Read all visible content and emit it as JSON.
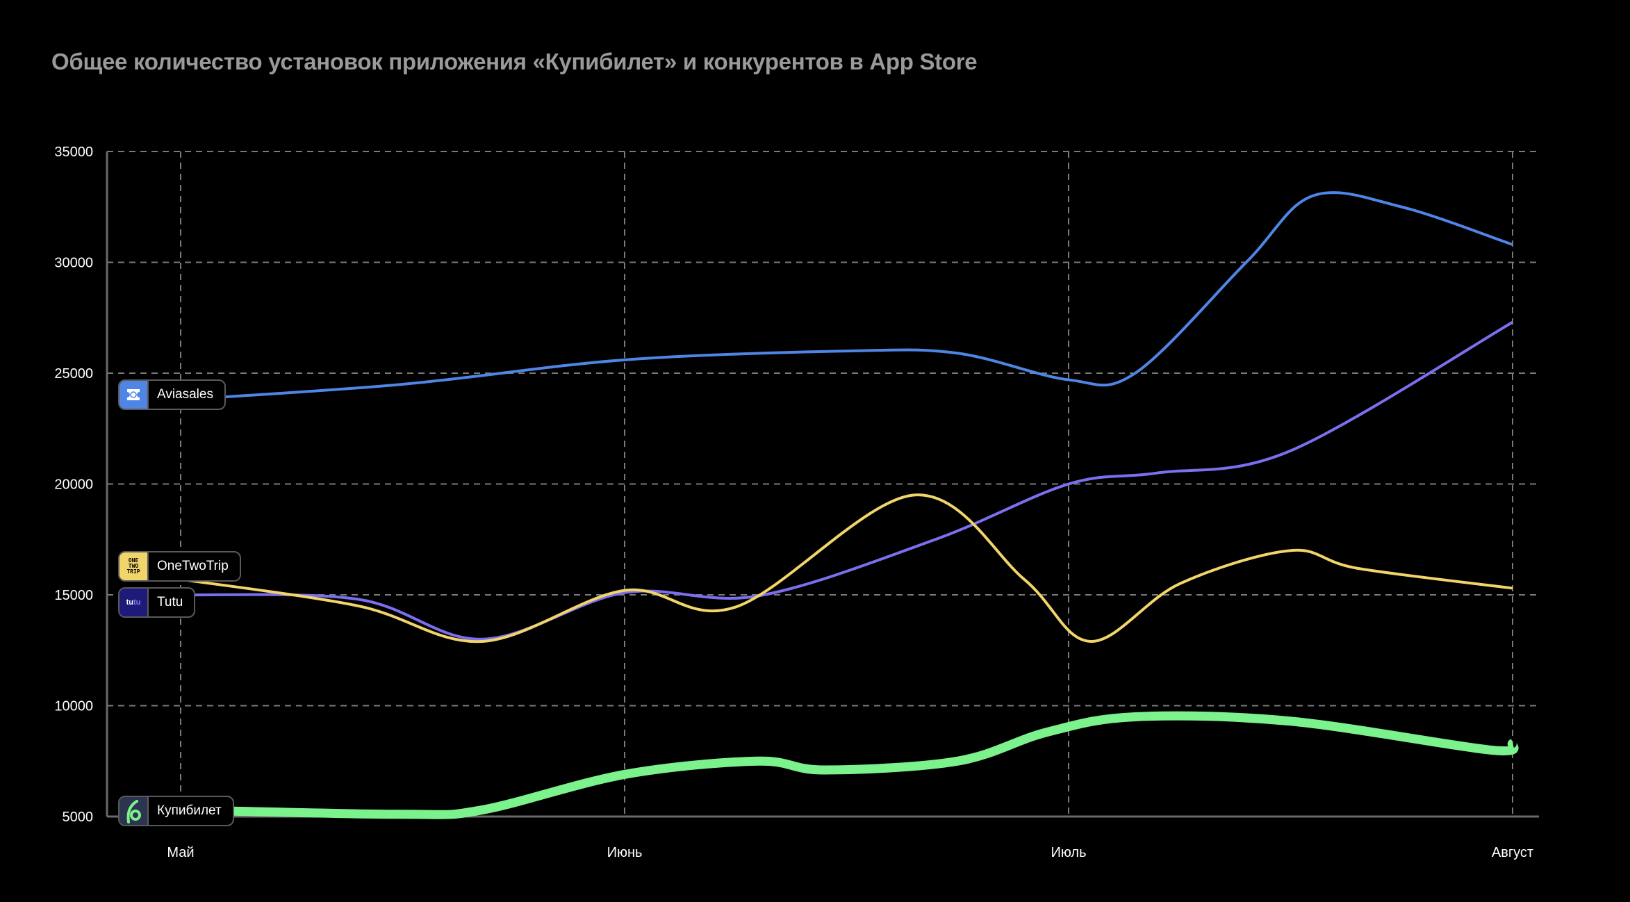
{
  "title": "Общее количество установок приложения «Купибилет» и конкурентов в App Store",
  "chart_data": {
    "type": "line",
    "title": "Общее количество установок приложения «Купибилет» и конкурентов в App Store",
    "xlabel": "",
    "ylabel": "",
    "categories": [
      "Май",
      "Июнь",
      "Июль",
      "Август"
    ],
    "x_unit": "month index (0 = Май, 3 = Август)",
    "ylim": [
      5000,
      35000
    ],
    "yticks": [
      "35000",
      "30000",
      "25000",
      "20000",
      "15000",
      "10000",
      "5000"
    ],
    "ytick_values": [
      35000,
      30000,
      25000,
      20000,
      15000,
      10000,
      5000
    ],
    "grid": true,
    "legend_placement": "left, inline at series start",
    "series": [
      {
        "name": "Aviasales",
        "color": "#4F86E6",
        "points": [
          [
            0,
            23800
          ],
          [
            0.5,
            24500
          ],
          [
            1.0,
            25600
          ],
          [
            1.5,
            26000
          ],
          [
            1.75,
            25900
          ],
          [
            2.0,
            24700
          ],
          [
            2.15,
            25000
          ],
          [
            2.4,
            30000
          ],
          [
            2.55,
            33000
          ],
          [
            2.75,
            32500
          ],
          [
            3.0,
            30800
          ]
        ]
      },
      {
        "name": "Tutu",
        "color": "#7B6FF0",
        "points": [
          [
            0,
            15000
          ],
          [
            0.4,
            14800
          ],
          [
            0.68,
            13000
          ],
          [
            1.0,
            15100
          ],
          [
            1.3,
            14950
          ],
          [
            1.7,
            17500
          ],
          [
            2.0,
            20000
          ],
          [
            2.2,
            20500
          ],
          [
            2.5,
            21500
          ],
          [
            3.0,
            27300
          ]
        ]
      },
      {
        "name": "OneTwoTrip",
        "color": "#F2D56A",
        "points": [
          [
            0,
            15700
          ],
          [
            0.4,
            14500
          ],
          [
            0.68,
            12900
          ],
          [
            1.0,
            15200
          ],
          [
            1.25,
            14450
          ],
          [
            1.65,
            19500
          ],
          [
            1.9,
            15700
          ],
          [
            2.05,
            12900
          ],
          [
            2.25,
            15500
          ],
          [
            2.5,
            17000
          ],
          [
            2.65,
            16200
          ],
          [
            3.0,
            15300
          ]
        ]
      },
      {
        "name": "Купибилет",
        "color": "#7CF28C",
        "points": [
          [
            0,
            5300
          ],
          [
            0.5,
            5100
          ],
          [
            0.68,
            5300
          ],
          [
            1.0,
            6900
          ],
          [
            1.3,
            7500
          ],
          [
            1.45,
            7100
          ],
          [
            1.75,
            7500
          ],
          [
            1.95,
            8800
          ],
          [
            2.15,
            9500
          ],
          [
            2.5,
            9300
          ],
          [
            2.95,
            8000
          ],
          [
            3.0,
            8300
          ]
        ]
      }
    ]
  },
  "legend": [
    {
      "name": "Aviasales",
      "logo": "aviasales-logo",
      "logo_bg": "#4F86E6"
    },
    {
      "name": "OneTwoTrip",
      "logo": "onetwotrip-logo",
      "logo_bg": "#F2D56A",
      "logo_text": [
        "ONE",
        "TWO",
        "TRIP"
      ]
    },
    {
      "name": "Tutu",
      "logo": "tutu-logo",
      "logo_bg": "#1E1A7A",
      "logo_text": [
        "tu",
        "tu"
      ]
    },
    {
      "name": "Купибилет",
      "logo": "kupibilet-logo",
      "logo_bg": "#2B3550"
    }
  ]
}
